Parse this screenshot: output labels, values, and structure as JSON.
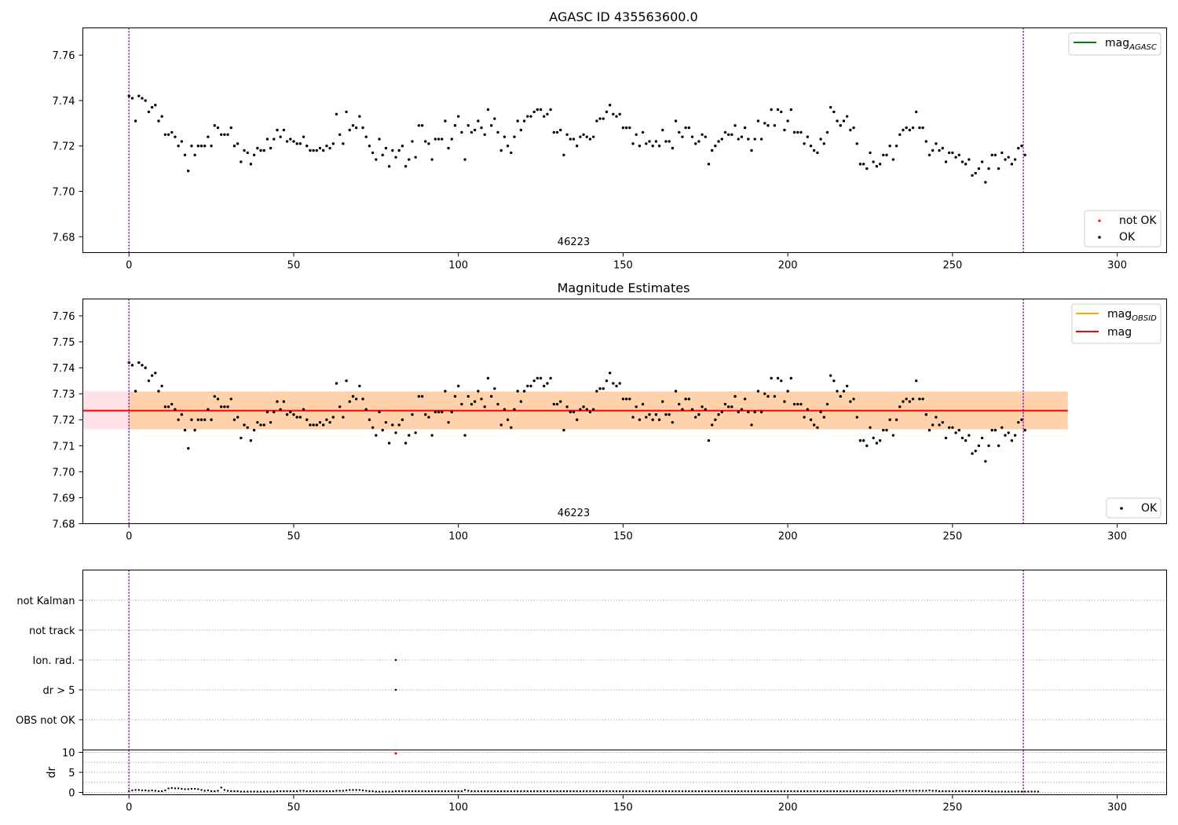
{
  "chart_data": [
    {
      "type": "scatter",
      "title": "AGASC ID 435563600.0",
      "xlim": [
        -14,
        315
      ],
      "ylim": [
        7.673,
        7.772
      ],
      "xticks": [
        0,
        50,
        100,
        150,
        200,
        250,
        300
      ],
      "yticks": [
        7.68,
        7.7,
        7.72,
        7.74,
        7.76
      ],
      "ytick_labels": [
        "7.68",
        "7.70",
        "7.72",
        "7.74",
        "7.76"
      ],
      "vlines": [
        0,
        271.5
      ],
      "vline_color": "#7f00bf",
      "annotation": "46223",
      "annotation_x": 135,
      "legend_lines": [
        {
          "label": "mag",
          "sub": "AGASC",
          "color": "#008000"
        }
      ],
      "legend_points": [
        {
          "label": "not OK",
          "color": "#ff0000"
        },
        {
          "label": "OK",
          "color": "#000000"
        }
      ],
      "series": [
        {
          "name": "OK",
          "color": "#000000",
          "x_start": 0,
          "values": [
            7.742,
            7.741,
            7.731,
            7.742,
            7.741,
            7.74,
            7.735,
            7.737,
            7.738,
            7.731,
            7.733,
            7.725,
            7.725,
            7.726,
            7.724,
            7.72,
            7.722,
            7.716,
            7.709,
            7.72,
            7.716,
            7.72,
            7.72,
            7.72,
            7.724,
            7.72,
            7.729,
            7.728,
            7.725,
            7.725,
            7.725,
            7.728,
            7.72,
            7.721,
            7.713,
            7.718,
            7.717,
            7.712,
            7.716,
            7.719,
            7.718,
            7.718,
            7.723,
            7.719,
            7.723,
            7.727,
            7.724,
            7.727,
            7.722,
            7.723,
            7.722,
            7.721,
            7.721,
            7.724,
            7.72,
            7.718,
            7.718,
            7.718,
            7.719,
            7.718,
            7.72,
            7.719,
            7.721,
            7.734,
            7.725,
            7.721,
            7.735,
            7.727,
            7.729,
            7.728,
            7.733,
            7.728,
            7.724,
            7.72,
            7.717,
            7.714,
            7.723,
            7.716,
            7.719,
            7.711,
            7.718,
            7.715,
            7.718,
            7.72,
            7.711,
            7.714,
            7.722,
            7.715,
            7.729,
            7.729,
            7.722,
            7.721,
            7.714,
            7.723,
            7.723,
            7.723,
            7.731,
            7.719,
            7.723,
            7.729,
            7.733,
            7.726,
            7.714,
            7.729,
            7.726,
            7.727,
            7.731,
            7.728,
            7.725,
            7.736,
            7.729,
            7.732,
            7.726,
            7.718,
            7.724,
            7.72,
            7.717,
            7.724,
            7.731,
            7.727,
            7.731,
            7.733,
            7.733,
            7.735,
            7.736,
            7.736,
            7.733,
            7.734,
            7.736,
            7.726,
            7.726,
            7.727,
            7.716,
            7.725,
            7.723,
            7.723,
            7.72,
            7.724,
            7.725,
            7.724,
            7.723,
            7.724,
            7.731,
            7.732,
            7.732,
            7.735,
            7.738,
            7.734,
            7.733,
            7.734,
            7.728,
            7.728,
            7.728,
            7.721,
            7.725,
            7.72,
            7.726,
            7.721,
            7.722,
            7.72,
            7.722,
            7.72,
            7.727,
            7.722,
            7.722,
            7.719,
            7.731,
            7.726,
            7.724,
            7.728,
            7.728,
            7.724,
            7.721,
            7.722,
            7.725,
            7.724,
            7.712,
            7.718,
            7.72,
            7.722,
            7.723,
            7.726,
            7.725,
            7.725,
            7.729,
            7.723,
            7.724,
            7.728,
            7.723,
            7.718,
            7.723,
            7.731,
            7.723,
            7.73,
            7.729,
            7.736,
            7.729,
            7.736,
            7.735,
            7.727,
            7.731,
            7.736,
            7.726,
            7.726,
            7.726,
            7.721,
            7.724,
            7.72,
            7.718,
            7.717,
            7.723,
            7.721,
            7.726,
            7.737,
            7.735,
            7.731,
            7.729,
            7.731,
            7.733,
            7.727,
            7.728,
            7.721,
            7.712,
            7.712,
            7.71,
            7.717,
            7.713,
            7.711,
            7.712,
            7.716,
            7.716,
            7.72,
            7.714,
            7.72,
            7.725,
            7.727,
            7.728,
            7.727,
            7.728,
            7.735,
            7.728,
            7.728,
            7.722,
            7.716,
            7.718,
            7.721,
            7.718,
            7.719,
            7.713,
            7.717,
            7.717,
            7.715,
            7.716,
            7.713,
            7.712,
            7.714,
            7.707,
            7.708,
            7.71,
            7.713,
            7.704,
            7.71,
            7.716,
            7.716,
            7.71,
            7.717,
            7.714,
            7.715,
            7.712,
            7.714,
            7.719,
            7.72,
            7.716
          ]
        }
      ]
    },
    {
      "type": "scatter",
      "title": "Magnitude Estimates",
      "xlim": [
        -14,
        315
      ],
      "ylim": [
        7.68,
        7.7665
      ],
      "xticks": [
        0,
        50,
        100,
        150,
        200,
        250,
        300
      ],
      "yticks": [
        7.68,
        7.69,
        7.7,
        7.71,
        7.72,
        7.73,
        7.74,
        7.75,
        7.76
      ],
      "ytick_labels": [
        "7.68",
        "7.69",
        "7.70",
        "7.71",
        "7.72",
        "7.73",
        "7.74",
        "7.75",
        "7.76"
      ],
      "vlines": [
        0,
        271.5
      ],
      "vline_color": "#7f00bf",
      "annotation": "46223",
      "annotation_x": 135,
      "mag_line": {
        "value": 7.7235,
        "x_range": [
          -14,
          285
        ],
        "color": "#ff0000"
      },
      "bands": [
        {
          "x_range": [
            -14,
            285
          ],
          "y_range": [
            7.7163,
            7.7309
          ],
          "color": "#ffb6c1",
          "opacity": 0.4
        },
        {
          "x_range": [
            0,
            285
          ],
          "y_range": [
            7.7163,
            7.7309
          ],
          "color": "#ffa500",
          "opacity": 0.25
        }
      ],
      "legend_lines": [
        {
          "label": "mag",
          "sub": "OBSID",
          "color": "#ffa500"
        },
        {
          "label": "mag",
          "sub": "",
          "color": "#ff0000"
        }
      ],
      "legend_points": [
        {
          "label": "OK",
          "color": "#000000"
        }
      ],
      "series": [
        {
          "name": "OK",
          "color": "#000000",
          "x_start": 0,
          "values": [
            7.742,
            7.741,
            7.731,
            7.742,
            7.741,
            7.74,
            7.735,
            7.737,
            7.738,
            7.731,
            7.733,
            7.725,
            7.725,
            7.726,
            7.724,
            7.72,
            7.722,
            7.716,
            7.709,
            7.72,
            7.716,
            7.72,
            7.72,
            7.72,
            7.724,
            7.72,
            7.729,
            7.728,
            7.725,
            7.725,
            7.725,
            7.728,
            7.72,
            7.721,
            7.713,
            7.718,
            7.717,
            7.712,
            7.716,
            7.719,
            7.718,
            7.718,
            7.723,
            7.719,
            7.723,
            7.727,
            7.724,
            7.727,
            7.722,
            7.723,
            7.722,
            7.721,
            7.721,
            7.724,
            7.72,
            7.718,
            7.718,
            7.718,
            7.719,
            7.718,
            7.72,
            7.719,
            7.721,
            7.734,
            7.725,
            7.721,
            7.735,
            7.727,
            7.729,
            7.728,
            7.733,
            7.728,
            7.724,
            7.72,
            7.717,
            7.714,
            7.723,
            7.716,
            7.719,
            7.711,
            7.718,
            7.715,
            7.718,
            7.72,
            7.711,
            7.714,
            7.722,
            7.715,
            7.729,
            7.729,
            7.722,
            7.721,
            7.714,
            7.723,
            7.723,
            7.723,
            7.731,
            7.719,
            7.723,
            7.729,
            7.733,
            7.726,
            7.714,
            7.729,
            7.726,
            7.727,
            7.731,
            7.728,
            7.725,
            7.736,
            7.729,
            7.732,
            7.726,
            7.718,
            7.724,
            7.72,
            7.717,
            7.724,
            7.731,
            7.727,
            7.731,
            7.733,
            7.733,
            7.735,
            7.736,
            7.736,
            7.733,
            7.734,
            7.736,
            7.726,
            7.726,
            7.727,
            7.716,
            7.725,
            7.723,
            7.723,
            7.72,
            7.724,
            7.725,
            7.724,
            7.723,
            7.724,
            7.731,
            7.732,
            7.732,
            7.735,
            7.738,
            7.734,
            7.733,
            7.734,
            7.728,
            7.728,
            7.728,
            7.721,
            7.725,
            7.72,
            7.726,
            7.721,
            7.722,
            7.72,
            7.722,
            7.72,
            7.727,
            7.722,
            7.722,
            7.719,
            7.731,
            7.726,
            7.724,
            7.728,
            7.728,
            7.724,
            7.721,
            7.722,
            7.725,
            7.724,
            7.712,
            7.718,
            7.72,
            7.722,
            7.723,
            7.726,
            7.725,
            7.725,
            7.729,
            7.723,
            7.724,
            7.728,
            7.723,
            7.718,
            7.723,
            7.731,
            7.723,
            7.73,
            7.729,
            7.736,
            7.729,
            7.736,
            7.735,
            7.727,
            7.731,
            7.736,
            7.726,
            7.726,
            7.726,
            7.721,
            7.724,
            7.72,
            7.718,
            7.717,
            7.723,
            7.721,
            7.726,
            7.737,
            7.735,
            7.731,
            7.729,
            7.731,
            7.733,
            7.727,
            7.728,
            7.721,
            7.712,
            7.712,
            7.71,
            7.717,
            7.713,
            7.711,
            7.712,
            7.716,
            7.716,
            7.72,
            7.714,
            7.72,
            7.725,
            7.727,
            7.728,
            7.727,
            7.728,
            7.735,
            7.728,
            7.728,
            7.722,
            7.716,
            7.718,
            7.721,
            7.718,
            7.719,
            7.713,
            7.717,
            7.717,
            7.715,
            7.716,
            7.713,
            7.712,
            7.714,
            7.707,
            7.708,
            7.71,
            7.713,
            7.704,
            7.71,
            7.716,
            7.716,
            7.71,
            7.717,
            7.714,
            7.715,
            7.712,
            7.714,
            7.719,
            7.72,
            7.716
          ]
        }
      ]
    },
    {
      "type": "scatter",
      "title": "",
      "xlim": [
        -14,
        315
      ],
      "categories": [
        "OBS not OK",
        "dr > 5",
        "Ion. rad.",
        "not track",
        "not Kalman"
      ],
      "vlines": [
        0,
        271.5
      ],
      "vline_color": "#7f00bf",
      "flag_points": [
        {
          "x": 81,
          "category": "Ion. rad."
        },
        {
          "x": 81,
          "category": "dr > 5"
        }
      ]
    },
    {
      "type": "scatter",
      "title": "",
      "ylabel": "dr",
      "xlim": [
        -14,
        315
      ],
      "ylim": [
        -0.5,
        11
      ],
      "xticks": [
        0,
        50,
        100,
        150,
        200,
        250,
        300
      ],
      "yticks": [
        0,
        5,
        10
      ],
      "ytick_labels": [
        "0",
        "5",
        "10"
      ],
      "vlines": [
        0,
        271.5
      ],
      "vline_color": "#7f00bf",
      "outlier": {
        "x": 81,
        "value": 9.7,
        "color": "#ff0000"
      },
      "series": [
        {
          "name": "dr",
          "color": "#000000",
          "x_start": 0,
          "values": [
            0.3,
            0.5,
            0.6,
            0.6,
            0.5,
            0.5,
            0.4,
            0.5,
            0.4,
            0.3,
            0.3,
            0.5,
            1.0,
            1.1,
            1.0,
            1.0,
            0.9,
            0.8,
            0.8,
            0.9,
            0.9,
            0.8,
            0.6,
            0.4,
            0.5,
            0.3,
            0.3,
            0.4,
            1.2,
            0.6,
            0.4,
            0.3,
            0.3,
            0.3,
            0.2,
            0.2,
            0.2,
            0.2,
            0.2,
            0.2,
            0.2,
            0.2,
            0.2,
            0.2,
            0.2,
            0.3,
            0.3,
            0.3,
            0.3,
            0.3,
            0.3,
            0.3,
            0.4,
            0.4,
            0.3,
            0.3,
            0.3,
            0.3,
            0.3,
            0.3,
            0.3,
            0.3,
            0.3,
            0.4,
            0.4,
            0.4,
            0.5,
            0.6,
            0.6,
            0.6,
            0.6,
            0.5,
            0.4,
            0.3,
            0.3,
            0.2,
            0.2,
            0.2,
            0.2,
            0.2,
            0.2,
            0.3,
            0.3,
            0.3,
            0.3,
            0.3,
            0.3,
            0.3,
            0.3,
            0.3,
            0.3,
            0.3,
            0.3,
            0.3,
            0.3,
            0.3,
            0.3,
            0.3,
            0.3,
            0.3,
            0.3,
            0.3,
            0.6,
            0.4,
            0.3,
            0.3,
            0.3,
            0.3,
            0.3,
            0.3,
            0.3,
            0.3,
            0.3,
            0.3,
            0.3,
            0.3,
            0.3,
            0.3,
            0.3,
            0.3,
            0.3,
            0.3,
            0.3,
            0.3,
            0.3,
            0.3,
            0.3,
            0.3,
            0.3,
            0.3,
            0.3,
            0.3,
            0.3,
            0.3,
            0.3,
            0.3,
            0.3,
            0.3,
            0.3,
            0.3,
            0.3,
            0.3,
            0.3,
            0.3,
            0.3,
            0.3,
            0.3,
            0.3,
            0.3,
            0.3,
            0.3,
            0.3,
            0.3,
            0.3,
            0.3,
            0.3,
            0.3,
            0.3,
            0.3,
            0.3,
            0.3,
            0.3,
            0.3,
            0.3,
            0.3,
            0.3,
            0.3,
            0.3,
            0.3,
            0.3,
            0.3,
            0.3,
            0.3,
            0.3,
            0.3,
            0.3,
            0.3,
            0.3,
            0.3,
            0.3,
            0.3,
            0.3,
            0.3,
            0.3,
            0.3,
            0.3,
            0.3,
            0.3,
            0.3,
            0.3,
            0.3,
            0.3,
            0.3,
            0.3,
            0.3,
            0.3,
            0.3,
            0.3,
            0.3,
            0.3,
            0.3,
            0.3,
            0.3,
            0.3,
            0.3,
            0.3,
            0.3,
            0.3,
            0.3,
            0.3,
            0.3,
            0.3,
            0.3,
            0.3,
            0.3,
            0.3,
            0.3,
            0.3,
            0.3,
            0.3,
            0.3,
            0.3,
            0.3,
            0.3,
            0.3,
            0.3,
            0.3,
            0.3,
            0.3,
            0.3,
            0.3,
            0.3,
            0.3,
            0.4,
            0.4,
            0.4,
            0.4,
            0.4,
            0.4,
            0.4,
            0.4,
            0.4,
            0.4,
            0.5,
            0.4,
            0.4,
            0.3,
            0.3,
            0.3,
            0.3,
            0.3,
            0.3,
            0.3,
            0.3,
            0.3,
            0.3,
            0.3,
            0.3,
            0.3,
            0.3,
            0.3,
            0.3,
            0.2,
            0.2,
            0.2,
            0.2,
            0.2,
            0.2,
            0.2,
            0.2,
            0.2,
            0.2,
            0.2,
            0.2,
            0.2,
            0.2,
            0.2
          ]
        }
      ]
    }
  ]
}
